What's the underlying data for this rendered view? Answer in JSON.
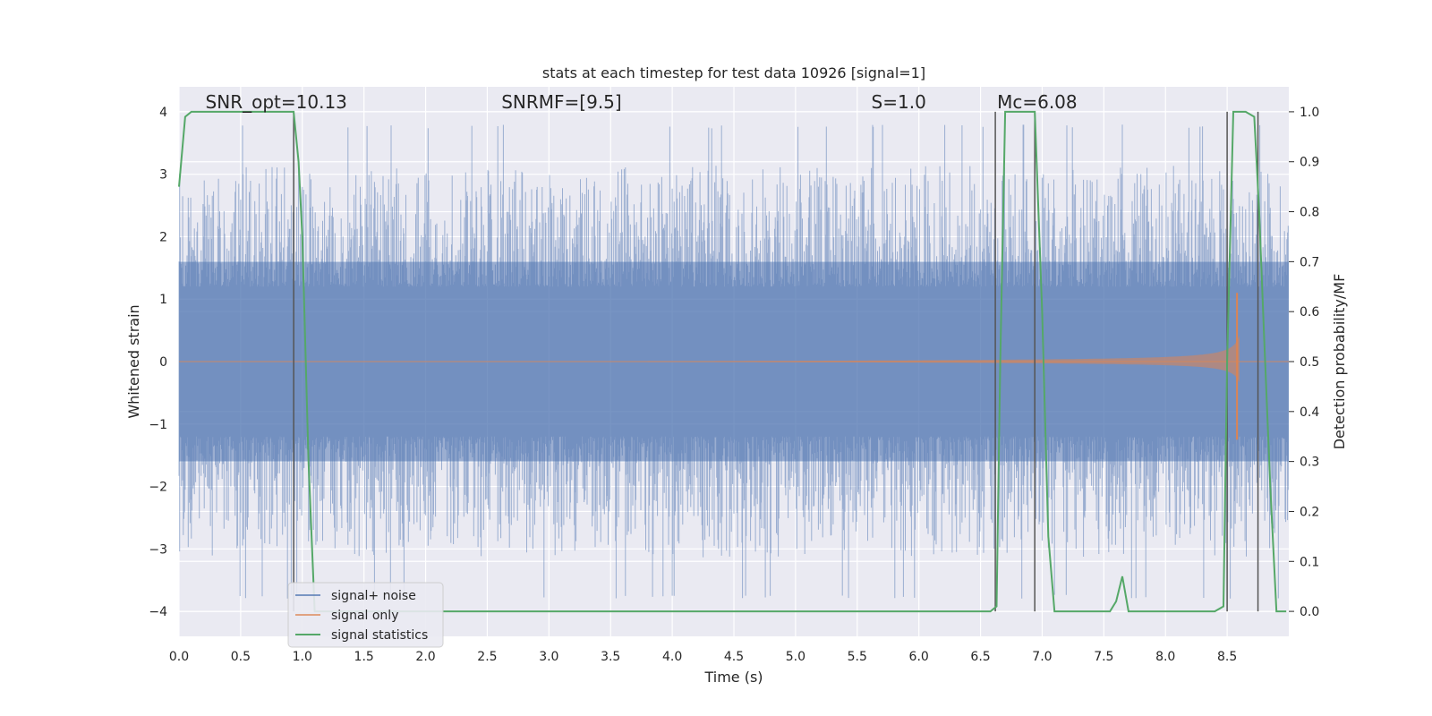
{
  "chart_data": {
    "type": "line",
    "title": "stats at each timestep for test data 10926 [signal=1]",
    "xlabel": "Time (s)",
    "ylabel": "Whitened strain",
    "ylabel_right": "Detection probability/MF",
    "xlim": [
      0.0,
      9.0
    ],
    "ylim": [
      -4.4,
      4.4
    ],
    "ylim_right": [
      -0.05,
      1.05
    ],
    "x_ticks": [
      "0.0",
      "0.5",
      "1.0",
      "1.5",
      "2.0",
      "2.5",
      "3.0",
      "3.5",
      "4.0",
      "4.5",
      "5.0",
      "5.5",
      "6.0",
      "6.5",
      "7.0",
      "7.5",
      "8.0",
      "8.5"
    ],
    "x_tick_values": [
      0.0,
      0.5,
      1.0,
      1.5,
      2.0,
      2.5,
      3.0,
      3.5,
      4.0,
      4.5,
      5.0,
      5.5,
      6.0,
      6.5,
      7.0,
      7.5,
      8.0,
      8.5
    ],
    "y_ticks": [
      "−4",
      "−3",
      "−2",
      "−1",
      "0",
      "1",
      "2",
      "3",
      "4"
    ],
    "y_tick_values": [
      -4,
      -3,
      -2,
      -1,
      0,
      1,
      2,
      3,
      4
    ],
    "y_right_ticks": [
      "0.0",
      "0.1",
      "0.2",
      "0.3",
      "0.4",
      "0.5",
      "0.6",
      "0.7",
      "0.8",
      "0.9",
      "1.0"
    ],
    "y_right_tick_values": [
      0.0,
      0.1,
      0.2,
      0.3,
      0.4,
      0.5,
      0.6,
      0.7,
      0.8,
      0.9,
      1.0
    ],
    "grid": true,
    "background": "#eaeaf2",
    "legend_position": "lower-left",
    "legend": [
      {
        "label": "signal+ noise",
        "color": "#4c72b0"
      },
      {
        "label": "signal only",
        "color": "#dd8452"
      },
      {
        "label": "signal statistics",
        "color": "#55a868"
      }
    ],
    "annotations": [
      {
        "text": "SNR_opt=10.13",
        "x": 0.2,
        "y": 4.1
      },
      {
        "text": "SNRMF=[9.5]",
        "x": 2.6,
        "y": 4.1
      },
      {
        "text": "S=1.0",
        "x": 5.6,
        "y": 4.1
      },
      {
        "text": "Mc=6.08",
        "x": 6.62,
        "y": 4.1
      }
    ],
    "noise": {
      "color": "#4c72b0",
      "x_range": [
        0.0,
        9.0
      ],
      "band": [
        -1.6,
        1.6
      ],
      "max_spike": 4.0,
      "min_spike": -4.0
    },
    "signal_only": {
      "color": "#dd8452",
      "start_time": 3.8,
      "end_time": 8.6,
      "peak_amplitude": 1.1,
      "merger_time": 8.6
    },
    "detection_probability": {
      "color": "#55a868",
      "x": [
        0.0,
        0.05,
        0.1,
        0.3,
        0.5,
        0.7,
        0.9,
        0.93,
        0.97,
        1.0,
        1.05,
        1.1,
        1.5,
        2.0,
        3.0,
        4.0,
        5.0,
        6.0,
        6.5,
        6.58,
        6.63,
        6.66,
        6.7,
        6.9,
        6.94,
        7.0,
        7.05,
        7.1,
        7.5,
        7.55,
        7.6,
        7.65,
        7.7,
        8.0,
        8.35,
        8.4,
        8.47,
        8.5,
        8.55,
        8.65,
        8.72,
        8.76,
        8.8,
        8.85,
        8.9,
        8.98
      ],
      "y": [
        0.85,
        0.99,
        1.0,
        1.0,
        1.0,
        1.0,
        1.0,
        1.0,
        0.9,
        0.75,
        0.3,
        0.0,
        0.0,
        0.0,
        0.0,
        0.0,
        0.0,
        0.0,
        0.0,
        0.0,
        0.01,
        0.5,
        1.0,
        1.0,
        1.0,
        0.6,
        0.15,
        0.0,
        0.0,
        0.0,
        0.02,
        0.07,
        0.0,
        0.0,
        0.0,
        0.0,
        0.01,
        0.5,
        1.0,
        1.0,
        0.99,
        0.8,
        0.55,
        0.25,
        0.0,
        0.0
      ]
    },
    "vertical_lines": {
      "color": "#555555",
      "x": [
        0.93,
        6.62,
        6.94,
        8.5,
        8.75
      ],
      "y_top": 4.0,
      "y_bottom": -4.0
    }
  }
}
